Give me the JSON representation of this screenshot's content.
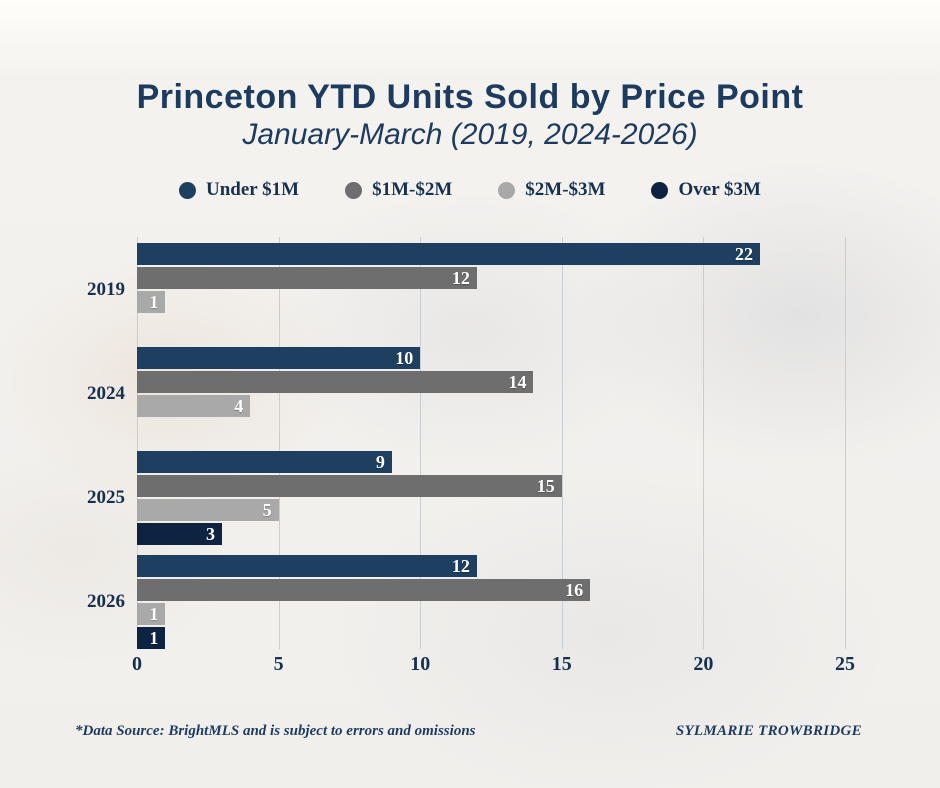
{
  "title": "Princeton YTD Units Sold by Price Point",
  "subtitle": "January-March (2019, 2024-2026)",
  "chart_data": {
    "type": "bar",
    "orientation": "horizontal",
    "title": "Princeton YTD Units Sold by Price Point",
    "subtitle": "January-March (2019, 2024-2026)",
    "categories": [
      "2019",
      "2024",
      "2025",
      "2026"
    ],
    "series": [
      {
        "name": "Under $1M",
        "color": "#1f3f60",
        "values": [
          22,
          10,
          9,
          12
        ]
      },
      {
        "name": "$1M-$2M",
        "color": "#6e6e6e",
        "values": [
          12,
          14,
          15,
          16
        ]
      },
      {
        "name": "$2M-$3M",
        "color": "#a9a9a9",
        "values": [
          1,
          4,
          5,
          1
        ]
      },
      {
        "name": "Over $3M",
        "color": "#0e2342",
        "values": [
          0,
          0,
          3,
          1
        ]
      }
    ],
    "xlim": [
      0,
      25
    ],
    "x_ticks": [
      0,
      5,
      10,
      15,
      20,
      25
    ],
    "grid": "vertical",
    "value_labels": "inside-end",
    "legend_position": "top",
    "zero_values_hidden": true
  },
  "footer": {
    "source_note": "*Data Source: BrightMLS and is subject to errors and omissions",
    "credit": "SYLMARIE TROWBRIDGE"
  },
  "colors": {
    "title_text": "#1d3a5f",
    "axis_text": "#16304f",
    "gridline": "#c9cdd4",
    "value_label_text": "#ffffff",
    "background": "#f1efec"
  }
}
